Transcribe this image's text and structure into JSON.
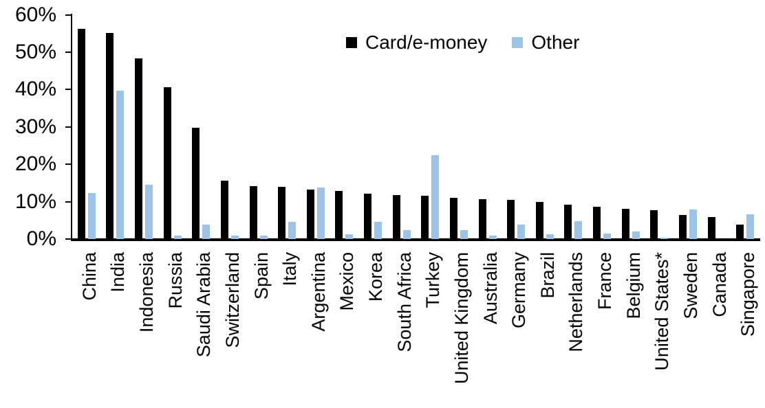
{
  "chart_data": {
    "type": "bar",
    "title": "",
    "xlabel": "",
    "ylabel": "",
    "categories": [
      "China",
      "India",
      "Indonesia",
      "Russia",
      "Saudi Arabia",
      "Switzerland",
      "Spain",
      "Italy",
      "Argentina",
      "Mexico",
      "Korea",
      "South Africa",
      "Turkey",
      "United Kingdom",
      "Australia",
      "Germany",
      "Brazil",
      "Netherlands",
      "France",
      "Belgium",
      "United States*",
      "Sweden",
      "Canada",
      "Singapore"
    ],
    "series": [
      {
        "name": "Card/e-money",
        "color": "#000000",
        "values": [
          56.3,
          55.1,
          48.3,
          40.6,
          29.8,
          15.6,
          14.1,
          14.0,
          13.3,
          12.9,
          12.2,
          11.7,
          11.6,
          11.0,
          10.7,
          10.5,
          9.9,
          9.2,
          8.6,
          8.0,
          7.8,
          6.4,
          5.9,
          3.9
        ]
      },
      {
        "name": "Other",
        "color": "#9DC3E6",
        "values": [
          12.3,
          39.8,
          14.5,
          1.0,
          3.9,
          0.9,
          1.0,
          4.6,
          13.8,
          1.3,
          4.6,
          2.3,
          22.5,
          2.3,
          1.0,
          3.9,
          1.2,
          4.8,
          1.5,
          2.0,
          0.3,
          7.9,
          0,
          6.7
        ]
      }
    ],
    "ylim": [
      0,
      60
    ],
    "ytick_step": 10,
    "ytick_labels": [
      "0%",
      "10%",
      "20%",
      "30%",
      "40%",
      "50%",
      "60%"
    ],
    "grid": false,
    "legend_position": "top-center",
    "axis_color": "#000000"
  }
}
